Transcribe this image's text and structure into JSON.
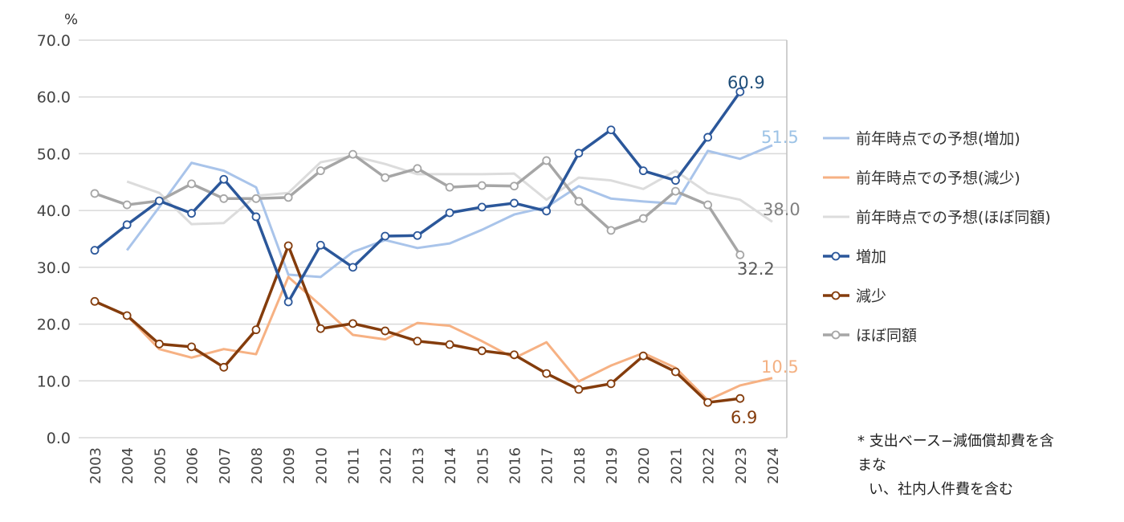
{
  "chart_data": {
    "type": "line",
    "unit_label": "%",
    "ylim": [
      0,
      70
    ],
    "yticks": [
      "0.0",
      "10.0",
      "20.0",
      "30.0",
      "40.0",
      "50.0",
      "60.0",
      "70.0"
    ],
    "x": [
      "2003",
      "2004",
      "2005",
      "2006",
      "2007",
      "2008",
      "2009",
      "2010",
      "2011",
      "2012",
      "2013",
      "2014",
      "2015",
      "2016",
      "2017",
      "2018",
      "2019",
      "2020",
      "2021",
      "2022",
      "2023",
      "2024"
    ],
    "grid": true,
    "legend_position": "right",
    "series": [
      {
        "name": "前年時点での予想(増加)",
        "color": "#a9c4ea",
        "markers": false,
        "width": 3,
        "values": [
          null,
          33.0,
          40.6,
          48.4,
          47.0,
          44.1,
          28.7,
          28.3,
          32.7,
          34.8,
          33.4,
          34.2,
          36.6,
          39.3,
          40.6,
          44.3,
          42.1,
          41.6,
          41.2,
          50.5,
          49.1,
          51.5
        ],
        "end_label": "51.5"
      },
      {
        "name": "前年時点での予想(減少)",
        "color": "#f6b183",
        "markers": false,
        "width": 3,
        "values": [
          null,
          21.5,
          15.6,
          14.1,
          15.6,
          14.7,
          28.3,
          23.3,
          18.1,
          17.3,
          20.2,
          19.7,
          17.0,
          14.0,
          16.8,
          9.9,
          12.7,
          14.9,
          12.3,
          6.6,
          9.2,
          10.5
        ],
        "end_label": "10.5"
      },
      {
        "name": "前年時点での予想(ほぼ同額)",
        "color": "#dcdcdc",
        "markers": false,
        "width": 3,
        "values": [
          null,
          45.1,
          43.1,
          37.6,
          37.8,
          42.6,
          43.1,
          48.5,
          49.6,
          48.2,
          46.4,
          46.4,
          46.4,
          46.5,
          41.9,
          45.8,
          45.3,
          43.8,
          47.0,
          43.1,
          41.9,
          38.0
        ],
        "end_label": "38.0"
      },
      {
        "name": "増加",
        "color": "#2b579a",
        "markers": true,
        "width": 3.5,
        "values": [
          33.0,
          37.5,
          41.7,
          39.5,
          45.5,
          38.9,
          23.9,
          33.9,
          30.0,
          35.5,
          35.6,
          39.6,
          40.6,
          41.3,
          39.9,
          50.1,
          54.2,
          47.0,
          45.3,
          52.9,
          60.9,
          null
        ],
        "end_label": "60.9"
      },
      {
        "name": "減少",
        "color": "#843c0c",
        "markers": true,
        "width": 3.5,
        "values": [
          24.0,
          21.5,
          16.5,
          16.0,
          12.4,
          19.0,
          33.8,
          19.2,
          20.1,
          18.8,
          17.0,
          16.4,
          15.3,
          14.6,
          11.3,
          8.5,
          9.5,
          14.4,
          11.6,
          6.2,
          6.9,
          null
        ],
        "end_label": "6.9"
      },
      {
        "name": "ほぼ同額",
        "color": "#a6a6a6",
        "markers": true,
        "width": 3.5,
        "values": [
          43.0,
          41.0,
          41.7,
          44.7,
          42.1,
          42.1,
          42.3,
          47.0,
          49.9,
          45.8,
          47.4,
          44.1,
          44.4,
          44.3,
          48.8,
          41.6,
          36.5,
          38.6,
          43.4,
          41.0,
          32.2,
          null
        ],
        "end_label": "32.2"
      }
    ],
    "label_colors": {
      "増加": "#1f4e79",
      "前年時点での予想(増加)": "#9dc3e6",
      "前年時点での予想(減少)": "#f4b183",
      "前年時点での予想(ほぼ同額)": "#595959",
      "減少": "#843c0c",
      "ほぼ同額": "#595959"
    }
  },
  "note": {
    "line1": "* 支出ベース−減価償却費を含まな",
    "line2": "い、社内人件費を含む"
  }
}
